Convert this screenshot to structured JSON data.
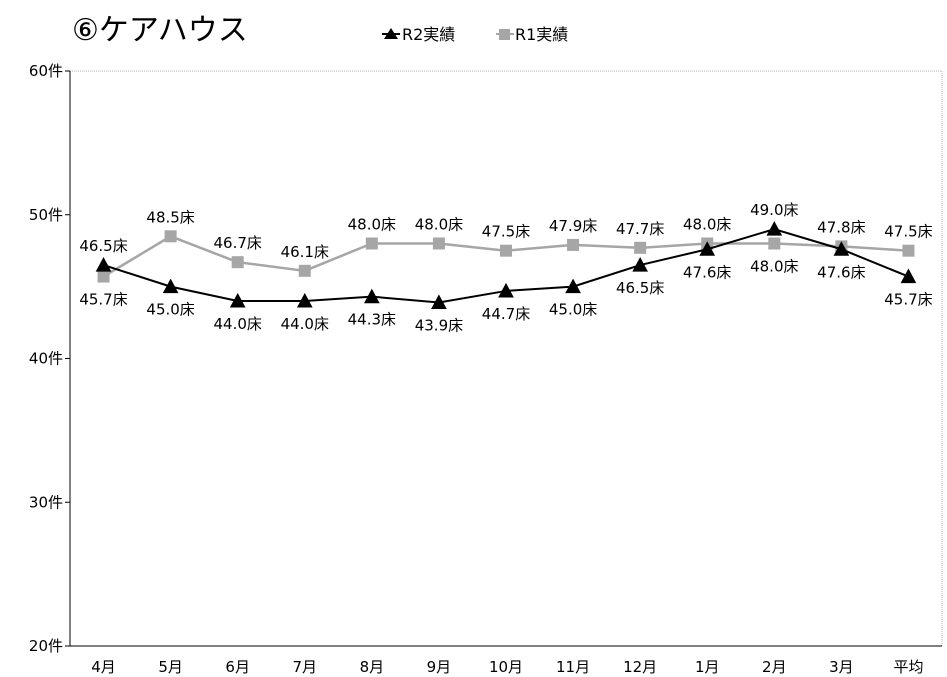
{
  "chart_data": {
    "type": "line",
    "title": "⑥ケアハウス",
    "categories": [
      "4月",
      "5月",
      "6月",
      "7月",
      "8月",
      "9月",
      "10月",
      "11月",
      "12月",
      "1月",
      "2月",
      "3月",
      "平均"
    ],
    "y_ticks": [
      "20件",
      "30件",
      "40件",
      "50件",
      "60件"
    ],
    "ylim": [
      20,
      60
    ],
    "grid": false,
    "legend_position": "top",
    "series": [
      {
        "name": "R2実績",
        "color": "#000000",
        "marker": "triangle",
        "values": [
          46.5,
          45.0,
          44.0,
          44.0,
          44.3,
          43.9,
          44.7,
          45.0,
          46.5,
          47.6,
          49.0,
          47.6,
          45.7
        ],
        "labels": [
          "46.5床",
          "45.0床",
          "44.0床",
          "44.0床",
          "44.3床",
          "43.9床",
          "44.7床",
          "45.0床",
          "46.5床",
          "47.6床",
          "49.0床",
          "47.6床",
          "45.7床"
        ]
      },
      {
        "name": "R1実績",
        "color": "#a6a6a6",
        "marker": "square",
        "values": [
          45.7,
          48.5,
          46.7,
          46.1,
          48.0,
          48.0,
          47.5,
          47.9,
          47.7,
          48.0,
          48.0,
          47.8,
          47.5
        ],
        "labels": [
          "45.7床",
          "48.5床",
          "46.7床",
          "46.1床",
          "48.0床",
          "48.0床",
          "47.5床",
          "47.9床",
          "47.7床",
          "48.0床",
          "48.0床",
          "47.8床",
          "47.5床"
        ]
      }
    ]
  }
}
